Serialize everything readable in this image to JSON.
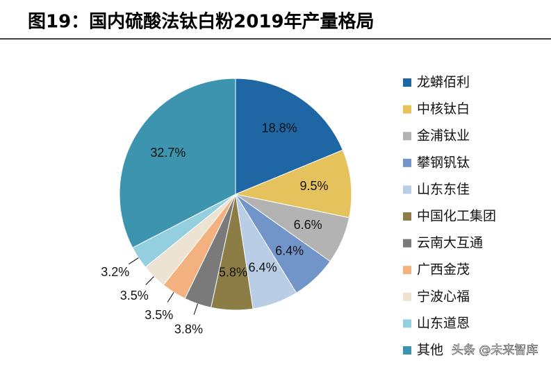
{
  "chart_data": {
    "type": "pie",
    "title": "图19：国内硫酸法钛白粉2019年产量格局",
    "categories": [
      "龙蟒佰利",
      "中核钛白",
      "金浦钛业",
      "攀钢钒钛",
      "山东东佳",
      "中国化工集团",
      "云南大互通",
      "广西金茂",
      "宁波心福",
      "山东道恩",
      "其他"
    ],
    "values": [
      18.8,
      9.5,
      6.6,
      6.4,
      6.4,
      5.8,
      3.8,
      3.5,
      3.5,
      3.2,
      32.7
    ],
    "value_labels": [
      "18.8%",
      "9.5%",
      "6.6%",
      "6.4%",
      "6.4%",
      "5.8%",
      "3.8%",
      "3.5%",
      "3.5%",
      "3.2%",
      "32.7%"
    ],
    "colors": [
      "#1f67a4",
      "#e5c25c",
      "#b3b3b3",
      "#7195c9",
      "#b9cde6",
      "#8b7d45",
      "#7a7a7a",
      "#f2b17f",
      "#ede3d3",
      "#93cfdf",
      "#3c94ae"
    ],
    "watermark": "头条 @未来智库"
  }
}
